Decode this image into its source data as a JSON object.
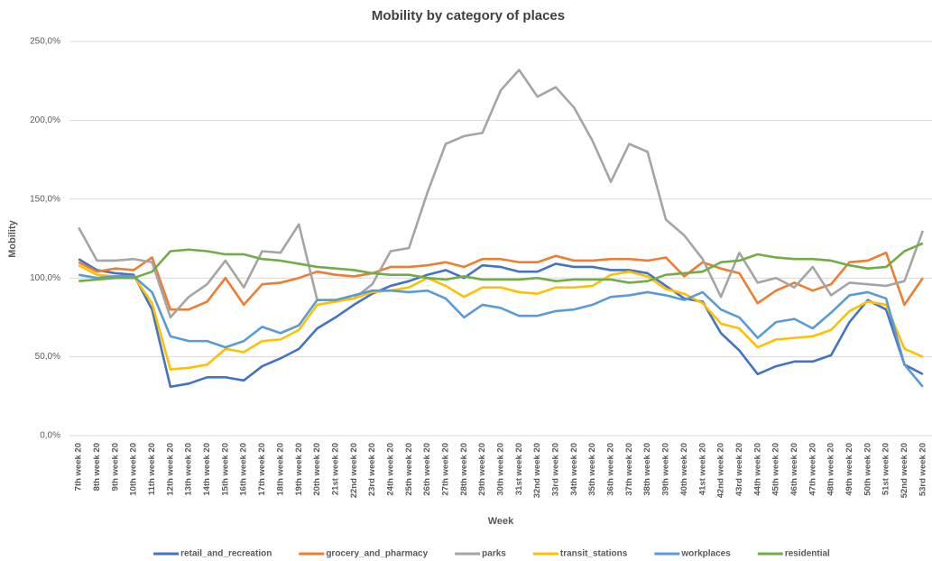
{
  "chart_data": {
    "type": "line",
    "title": "Mobility by category of places",
    "x_label": "Week",
    "y_label": "Mobility",
    "categories": [
      "7th week 20",
      "8th week 20",
      "9th week 20",
      "10th week 20",
      "11th week 20",
      "12th week 20",
      "13th week 20",
      "14th week 20",
      "15th week 20",
      "16th week 20",
      "17th week 20",
      "18th week 20",
      "19th week 20",
      "20th week 20",
      "21st week 20",
      "22nd week 20",
      "23rd week 20",
      "24th week 20",
      "25th week 20",
      "26th week 20",
      "27th week 20",
      "28th week 20",
      "29th week 20",
      "30th week 20",
      "31st week 20",
      "32nd week 20",
      "33rd week 20",
      "34th week 20",
      "35th week 20",
      "36th week 20",
      "37th week 20",
      "38th week 20",
      "39th week 20",
      "40th week 20",
      "41st week 20",
      "42nd week 20",
      "43rd week 20",
      "44th week 20",
      "45th week 20",
      "46th week 20",
      "47th week 20",
      "48th week 20",
      "49th week 20",
      "50th week 20",
      "51st week 20",
      "52nd week 20",
      "53rd week 20"
    ],
    "series": [
      {
        "name": "retail_and_recreation",
        "color": "#4472c4",
        "values": [
          112,
          105,
          103,
          102,
          80,
          31,
          33,
          37,
          37,
          35,
          44,
          49,
          55,
          68,
          75,
          83,
          90,
          95,
          98,
          102,
          105,
          100,
          108,
          107,
          104,
          104,
          109,
          107,
          107,
          105,
          105,
          103,
          95,
          87,
          85,
          65,
          54,
          39,
          44,
          47,
          47,
          51,
          72,
          86,
          80,
          45,
          39
        ]
      },
      {
        "name": "grocery_and_pharmacy",
        "color": "#ed7d31",
        "values": [
          110,
          104,
          106,
          105,
          113,
          80,
          80,
          85,
          100,
          83,
          96,
          97,
          100,
          104,
          102,
          101,
          103,
          107,
          107,
          108,
          110,
          107,
          112,
          112,
          110,
          110,
          114,
          111,
          111,
          112,
          112,
          111,
          113,
          101,
          110,
          106,
          103,
          84,
          92,
          97,
          92,
          96,
          110,
          111,
          116,
          83,
          100
        ]
      },
      {
        "name": "parks",
        "color": "#a5a5a5",
        "values": [
          132,
          111,
          111,
          112,
          110,
          75,
          88,
          96,
          111,
          94,
          117,
          116,
          134,
          86,
          86,
          87,
          96,
          117,
          119,
          154,
          185,
          190,
          192,
          219,
          232,
          215,
          221,
          208,
          187,
          161,
          185,
          180,
          137,
          127,
          112,
          88,
          116,
          97,
          100,
          94,
          107,
          89,
          97,
          96,
          95,
          98,
          130
        ]
      },
      {
        "name": "transit_stations",
        "color": "#ffc000",
        "values": [
          108,
          102,
          101,
          101,
          84,
          42,
          43,
          45,
          55,
          53,
          60,
          61,
          67,
          83,
          85,
          87,
          91,
          92,
          94,
          100,
          95,
          88,
          94,
          94,
          91,
          90,
          94,
          94,
          95,
          102,
          104,
          101,
          93,
          90,
          84,
          71,
          68,
          56,
          61,
          62,
          63,
          67,
          79,
          85,
          83,
          55,
          50
        ]
      },
      {
        "name": "workplaces",
        "color": "#5b9bd5",
        "values": [
          102,
          100,
          101,
          101,
          91,
          63,
          60,
          60,
          56,
          60,
          69,
          65,
          70,
          86,
          86,
          89,
          92,
          92,
          91,
          92,
          87,
          75,
          83,
          81,
          76,
          76,
          79,
          80,
          83,
          88,
          89,
          91,
          89,
          86,
          91,
          80,
          75,
          62,
          72,
          74,
          68,
          78,
          89,
          91,
          87,
          45,
          31
        ]
      },
      {
        "name": "residential",
        "color": "#70ad47",
        "values": [
          98,
          99,
          100,
          100,
          104,
          117,
          118,
          117,
          115,
          115,
          112,
          111,
          109,
          107,
          106,
          105,
          103,
          102,
          102,
          100,
          99,
          101,
          99,
          99,
          99,
          100,
          98,
          99,
          99,
          99,
          97,
          98,
          102,
          103,
          104,
          110,
          111,
          115,
          113,
          112,
          112,
          111,
          108,
          106,
          107,
          117,
          122
        ]
      }
    ],
    "ylim": [
      0,
      250
    ],
    "yticks": [
      {
        "value": 0,
        "label": "0,0%"
      },
      {
        "value": 50,
        "label": "50,0%"
      },
      {
        "value": 100,
        "label": "100,0%"
      },
      {
        "value": 150,
        "label": "150,0%"
      },
      {
        "value": 200,
        "label": "200,0%"
      },
      {
        "value": 250,
        "label": "250,0%"
      }
    ],
    "grid": true,
    "legend": "bottom"
  }
}
